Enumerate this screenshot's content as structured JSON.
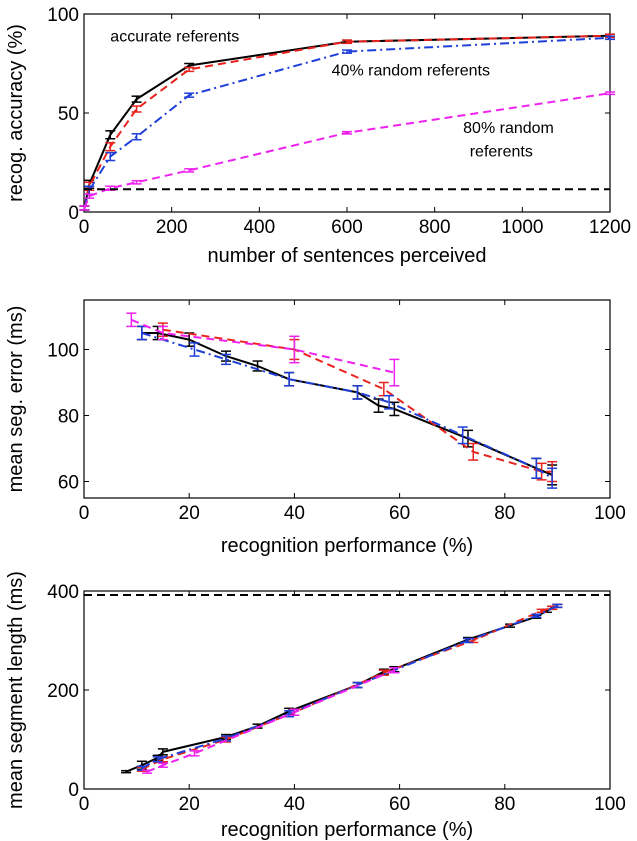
{
  "figure": {
    "colors": {
      "black": "#000000",
      "red": "#e8231e",
      "blue": "#1f3fd8",
      "magenta": "#ee22ee",
      "axes": "#000000"
    }
  },
  "chart_data": [
    {
      "id": "panel_a",
      "type": "line",
      "title": "",
      "xlabel": "number of sentences perceived",
      "ylabel": "recog. accuracy (%)",
      "xlim": [
        0,
        1200
      ],
      "ylim": [
        0,
        100
      ],
      "xticks": [
        0,
        200,
        400,
        600,
        800,
        1000,
        1200
      ],
      "yticks": [
        0,
        50,
        100
      ],
      "xtick_labels": [
        "0",
        "200",
        "400",
        "600",
        "800",
        "1000",
        "1200"
      ],
      "ytick_labels": [
        "0",
        "50",
        "100"
      ],
      "grid": false,
      "annotations": [
        {
          "text": "accurate referents",
          "x": 60,
          "y": 86
        },
        {
          "text": "40% random referents",
          "x": 565,
          "y": 69
        },
        {
          "text": "80% random",
          "x": 865,
          "y": 40
        },
        {
          "text": "referents",
          "x": 880,
          "y": 28
        }
      ],
      "series": [
        {
          "style": "solid",
          "color": "#000000",
          "x": [
            1,
            12,
            60,
            120,
            240,
            600,
            1200
          ],
          "y": [
            2,
            14,
            39,
            57,
            74,
            86,
            89
          ],
          "err": [
            1,
            2,
            2,
            1.5,
            1,
            0.8,
            0.8
          ]
        },
        {
          "style": "dashed",
          "color": "#e8231e",
          "x": [
            1,
            12,
            60,
            120,
            240,
            600,
            1200
          ],
          "y": [
            2,
            13,
            33,
            52,
            72,
            86,
            89
          ],
          "err": [
            1,
            2,
            2,
            1.5,
            1,
            0.8,
            0.8
          ]
        },
        {
          "style": "dashdot",
          "color": "#1f3fd8",
          "x": [
            1,
            12,
            60,
            120,
            240,
            600,
            1200
          ],
          "y": [
            2,
            11,
            28,
            38,
            59,
            81,
            88
          ],
          "err": [
            1,
            2,
            2,
            1.5,
            1,
            0.8,
            0.8
          ]
        },
        {
          "style": "dashed",
          "color": "#ee22ee",
          "x": [
            1,
            12,
            60,
            120,
            240,
            600,
            1200
          ],
          "y": [
            2,
            8,
            12,
            15,
            21,
            40,
            60
          ],
          "err": [
            1,
            1,
            1,
            0.8,
            0.8,
            0.6,
            0.6
          ]
        },
        {
          "style": "dashed",
          "color": "#000000",
          "x": [
            0,
            1200
          ],
          "y": [
            11.5,
            11.5
          ],
          "err": []
        }
      ]
    },
    {
      "id": "panel_b",
      "type": "line",
      "title": "",
      "xlabel": "recognition performance (%)",
      "ylabel": "mean seg. error (ms)",
      "xlim": [
        0,
        100
      ],
      "ylim": [
        55,
        115
      ],
      "xticks": [
        0,
        20,
        40,
        60,
        80,
        100
      ],
      "yticks": [
        60,
        80,
        100
      ],
      "xtick_labels": [
        "0",
        "20",
        "40",
        "60",
        "80",
        "100"
      ],
      "ytick_labels": [
        "60",
        "80",
        "100"
      ],
      "grid": false,
      "series": [
        {
          "style": "solid",
          "color": "#000000",
          "x": [
            11,
            14,
            20,
            27,
            33,
            39,
            52,
            56,
            59,
            73,
            86,
            89
          ],
          "y": [
            105,
            105,
            103,
            98,
            95,
            91,
            87,
            83,
            82,
            73,
            64,
            62
          ],
          "err": [
            2,
            2,
            2,
            1.5,
            1.5,
            2,
            2,
            2,
            2,
            2.5,
            3,
            3
          ]
        },
        {
          "style": "dashed",
          "color": "#e8231e",
          "x": [
            15,
            40,
            57,
            74,
            87,
            89
          ],
          "y": [
            106,
            100,
            88,
            69,
            63,
            63
          ],
          "err": [
            2,
            3,
            2,
            2.5,
            2.5,
            3
          ]
        },
        {
          "style": "dashdot",
          "color": "#1f3fd8",
          "x": [
            11,
            21,
            27,
            39,
            52,
            58,
            72,
            86,
            89
          ],
          "y": [
            105,
            100,
            97,
            91,
            87,
            84,
            74,
            64,
            61
          ],
          "err": [
            2,
            2,
            1.5,
            2,
            2,
            2,
            2.5,
            3,
            3
          ]
        },
        {
          "style": "dashed",
          "color": "#ee22ee",
          "x": [
            9,
            15,
            40,
            59
          ],
          "y": [
            109,
            105,
            100,
            93
          ],
          "err": [
            2,
            2,
            4,
            4
          ]
        }
      ]
    },
    {
      "id": "panel_c",
      "type": "line",
      "title": "",
      "xlabel": "recognition performance (%)",
      "ylabel": "mean segment length (ms)",
      "xlim": [
        0,
        100
      ],
      "ylim": [
        0,
        400
      ],
      "xticks": [
        0,
        20,
        40,
        60,
        80,
        100
      ],
      "yticks": [
        0,
        200,
        400
      ],
      "xtick_labels": [
        "0",
        "20",
        "40",
        "60",
        "80",
        "100"
      ],
      "ytick_labels": [
        "0",
        "200",
        "400"
      ],
      "grid": false,
      "series": [
        {
          "style": "solid",
          "color": "#000000",
          "x": [
            8,
            11,
            14,
            15,
            27,
            33,
            39,
            52,
            57,
            59,
            73,
            81,
            86,
            88,
            89,
            90
          ],
          "y": [
            35,
            48,
            63,
            75,
            105,
            127,
            157,
            210,
            237,
            242,
            302,
            330,
            348,
            360,
            366,
            370
          ],
          "err": [
            2,
            8,
            5,
            6,
            5,
            4,
            6,
            5,
            5,
            5,
            4,
            3,
            3,
            3,
            3,
            3
          ]
        },
        {
          "style": "dashed",
          "color": "#e8231e",
          "x": [
            11,
            15,
            27,
            40,
            57,
            74,
            87,
            89,
            90
          ],
          "y": [
            40,
            60,
            100,
            155,
            235,
            300,
            360,
            366,
            370
          ],
          "err": [
            4,
            5,
            5,
            6,
            5,
            4,
            3,
            3,
            3
          ]
        },
        {
          "style": "dashdot",
          "color": "#1f3fd8",
          "x": [
            11,
            14,
            27,
            39,
            52,
            59,
            73,
            86,
            90
          ],
          "y": [
            42,
            60,
            102,
            152,
            210,
            240,
            300,
            350,
            370
          ],
          "err": [
            4,
            5,
            5,
            6,
            5,
            5,
            4,
            3,
            3
          ]
        },
        {
          "style": "dashed",
          "color": "#ee22ee",
          "x": [
            12,
            15,
            21,
            40,
            59
          ],
          "y": [
            35,
            48,
            72,
            155,
            240
          ],
          "err": [
            3,
            4,
            5,
            6,
            5
          ]
        },
        {
          "style": "dashed",
          "color": "#000000",
          "x": [
            0,
            100
          ],
          "y": [
            392,
            392
          ],
          "err": []
        }
      ]
    }
  ]
}
